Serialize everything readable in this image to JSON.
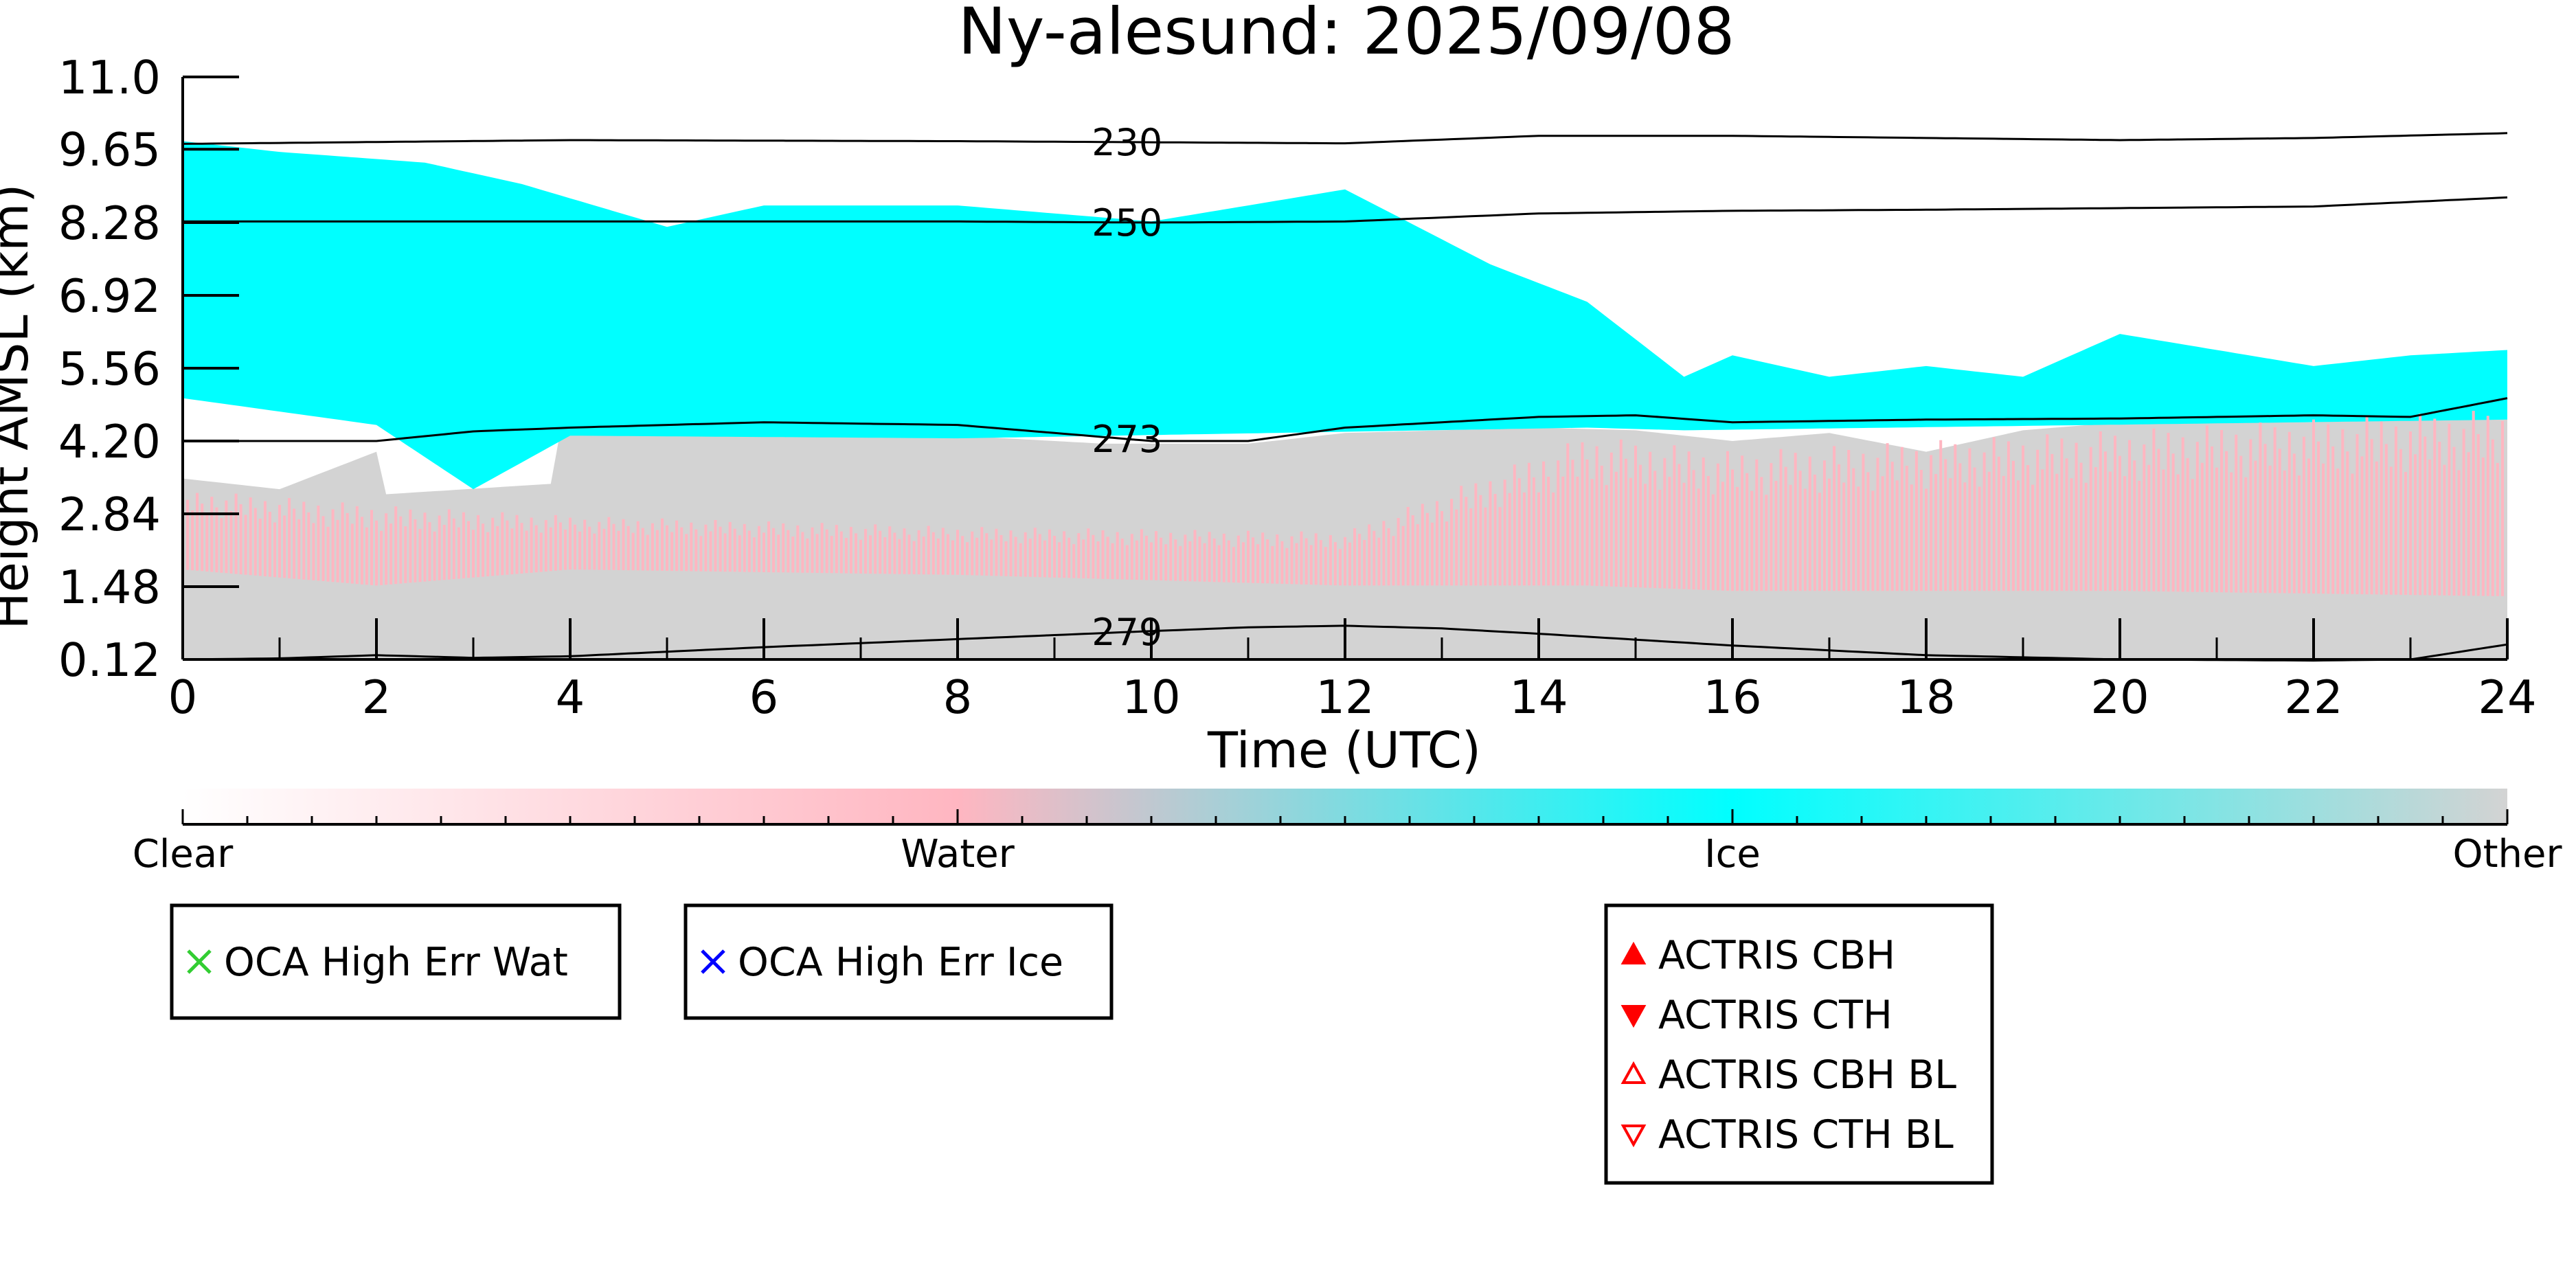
{
  "chart_data": {
    "type": "heatmap",
    "title": "Ny-alesund: 2025/09/08",
    "xlabel": "Time (UTC)",
    "ylabel": "Height AMSL (km)",
    "xlim": [
      0,
      24
    ],
    "ylim": [
      0.12,
      11.0
    ],
    "x_ticks": [
      "0",
      "2",
      "4",
      "6",
      "8",
      "10",
      "12",
      "14",
      "16",
      "18",
      "20",
      "22",
      "24"
    ],
    "y_ticks": [
      "0.12",
      "1.48",
      "2.84",
      "4.20",
      "5.56",
      "6.92",
      "8.28",
      "9.65",
      "11.0"
    ],
    "colors": {
      "clear": "#ffffff",
      "water": "#ffb6c1",
      "ice": "#00ffff",
      "other": "#d3d3d3"
    },
    "classes": [
      "Clear",
      "Water",
      "Ice",
      "Other"
    ],
    "cloud_regions": {
      "other_top_km": [
        [
          0,
          3.5
        ],
        [
          1.0,
          3.3
        ],
        [
          2.0,
          4.0
        ],
        [
          2.05,
          3.2
        ],
        [
          3.8,
          3.4
        ],
        [
          3.85,
          4.4
        ],
        [
          5.0,
          4.3
        ],
        [
          6.5,
          4.35
        ],
        [
          8.0,
          4.3
        ],
        [
          9.5,
          4.15
        ],
        [
          11.0,
          4.15
        ],
        [
          12.0,
          4.35
        ],
        [
          14.0,
          4.45
        ],
        [
          15.0,
          4.4
        ],
        [
          16.0,
          4.2
        ],
        [
          17.0,
          4.35
        ],
        [
          18.0,
          4.0
        ],
        [
          19.0,
          4.4
        ],
        [
          20.0,
          4.55
        ],
        [
          22.0,
          4.55
        ],
        [
          24.0,
          4.75
        ]
      ],
      "water_band_km": [
        [
          0,
          1.8,
          3.3
        ],
        [
          2.0,
          1.5,
          3.0
        ],
        [
          4.0,
          1.8,
          2.8
        ],
        [
          8.0,
          1.7,
          2.6
        ],
        [
          12.0,
          1.5,
          2.5
        ],
        [
          14.5,
          1.5,
          4.3
        ],
        [
          16.0,
          1.4,
          4.0
        ],
        [
          20.0,
          1.4,
          4.4
        ],
        [
          24.0,
          1.3,
          4.8
        ]
      ],
      "ice_top_km": [
        [
          0,
          9.8
        ],
        [
          1.0,
          9.6
        ],
        [
          2.5,
          9.4
        ],
        [
          3.5,
          9.0
        ],
        [
          5.0,
          8.2
        ],
        [
          6.0,
          8.6
        ],
        [
          8.0,
          8.6
        ],
        [
          10.0,
          8.3
        ],
        [
          12.0,
          8.9
        ],
        [
          13.5,
          7.5
        ],
        [
          14.5,
          6.8
        ],
        [
          15.5,
          5.4
        ],
        [
          16.0,
          5.8
        ],
        [
          17.0,
          5.4
        ],
        [
          18.0,
          5.6
        ],
        [
          19.0,
          5.4
        ],
        [
          20.0,
          6.2
        ],
        [
          22.0,
          5.6
        ],
        [
          23.0,
          5.8
        ],
        [
          24.0,
          5.9
        ]
      ],
      "ice_bottom_km": [
        [
          0,
          5.0
        ],
        [
          2.0,
          4.5
        ],
        [
          3.0,
          3.3
        ],
        [
          4.0,
          4.3
        ],
        [
          8.0,
          4.25
        ],
        [
          14.5,
          4.45
        ],
        [
          15.5,
          4.4
        ],
        [
          24.0,
          4.6
        ]
      ]
    },
    "series": [
      {
        "name": "230",
        "x": [
          0,
          4,
          8,
          10,
          12,
          14,
          16,
          18,
          20,
          22,
          24
        ],
        "y": [
          9.75,
          9.82,
          9.8,
          9.78,
          9.76,
          9.9,
          9.9,
          9.86,
          9.82,
          9.86,
          9.95
        ]
      },
      {
        "name": "250",
        "x": [
          0,
          4,
          8,
          10,
          12,
          14,
          16,
          18,
          20,
          22,
          24
        ],
        "y": [
          8.3,
          8.3,
          8.3,
          8.28,
          8.3,
          8.45,
          8.5,
          8.52,
          8.55,
          8.58,
          8.75
        ]
      },
      {
        "name": "273",
        "x": [
          0,
          2,
          3,
          4,
          6,
          8,
          10,
          11,
          12,
          14,
          15,
          16,
          18,
          20,
          22,
          23,
          24
        ],
        "y": [
          4.2,
          4.2,
          4.38,
          4.45,
          4.55,
          4.5,
          4.2,
          4.2,
          4.45,
          4.65,
          4.68,
          4.55,
          4.6,
          4.62,
          4.68,
          4.65,
          5.0
        ]
      },
      {
        "name": "279",
        "x": [
          0,
          1,
          2,
          3,
          4,
          6,
          8,
          10,
          11,
          12,
          13,
          14,
          16,
          18,
          20,
          22,
          23,
          24
        ],
        "y": [
          0.12,
          0.14,
          0.2,
          0.15,
          0.18,
          0.35,
          0.5,
          0.65,
          0.72,
          0.75,
          0.7,
          0.6,
          0.38,
          0.2,
          0.12,
          0.1,
          0.12,
          0.4
        ]
      }
    ],
    "colorbar": {
      "labels": [
        "Clear",
        "Water",
        "Ice",
        "Other"
      ]
    },
    "legends": [
      {
        "items": [
          {
            "label": "OCA High Err Wat",
            "marker": "x",
            "color": "#32cd32"
          }
        ]
      },
      {
        "items": [
          {
            "label": "OCA High Err Ice",
            "marker": "x",
            "color": "#0000ff"
          }
        ]
      },
      {
        "items": [
          {
            "label": "ACTRIS CBH",
            "marker": "triangle-up-filled",
            "color": "#ff0000"
          },
          {
            "label": "ACTRIS CTH",
            "marker": "triangle-down-filled",
            "color": "#ff0000"
          },
          {
            "label": "ACTRIS CBH BL",
            "marker": "triangle-up-open",
            "color": "#ff0000"
          },
          {
            "label": "ACTRIS CTH BL",
            "marker": "triangle-down-open",
            "color": "#ff0000"
          }
        ]
      }
    ]
  }
}
